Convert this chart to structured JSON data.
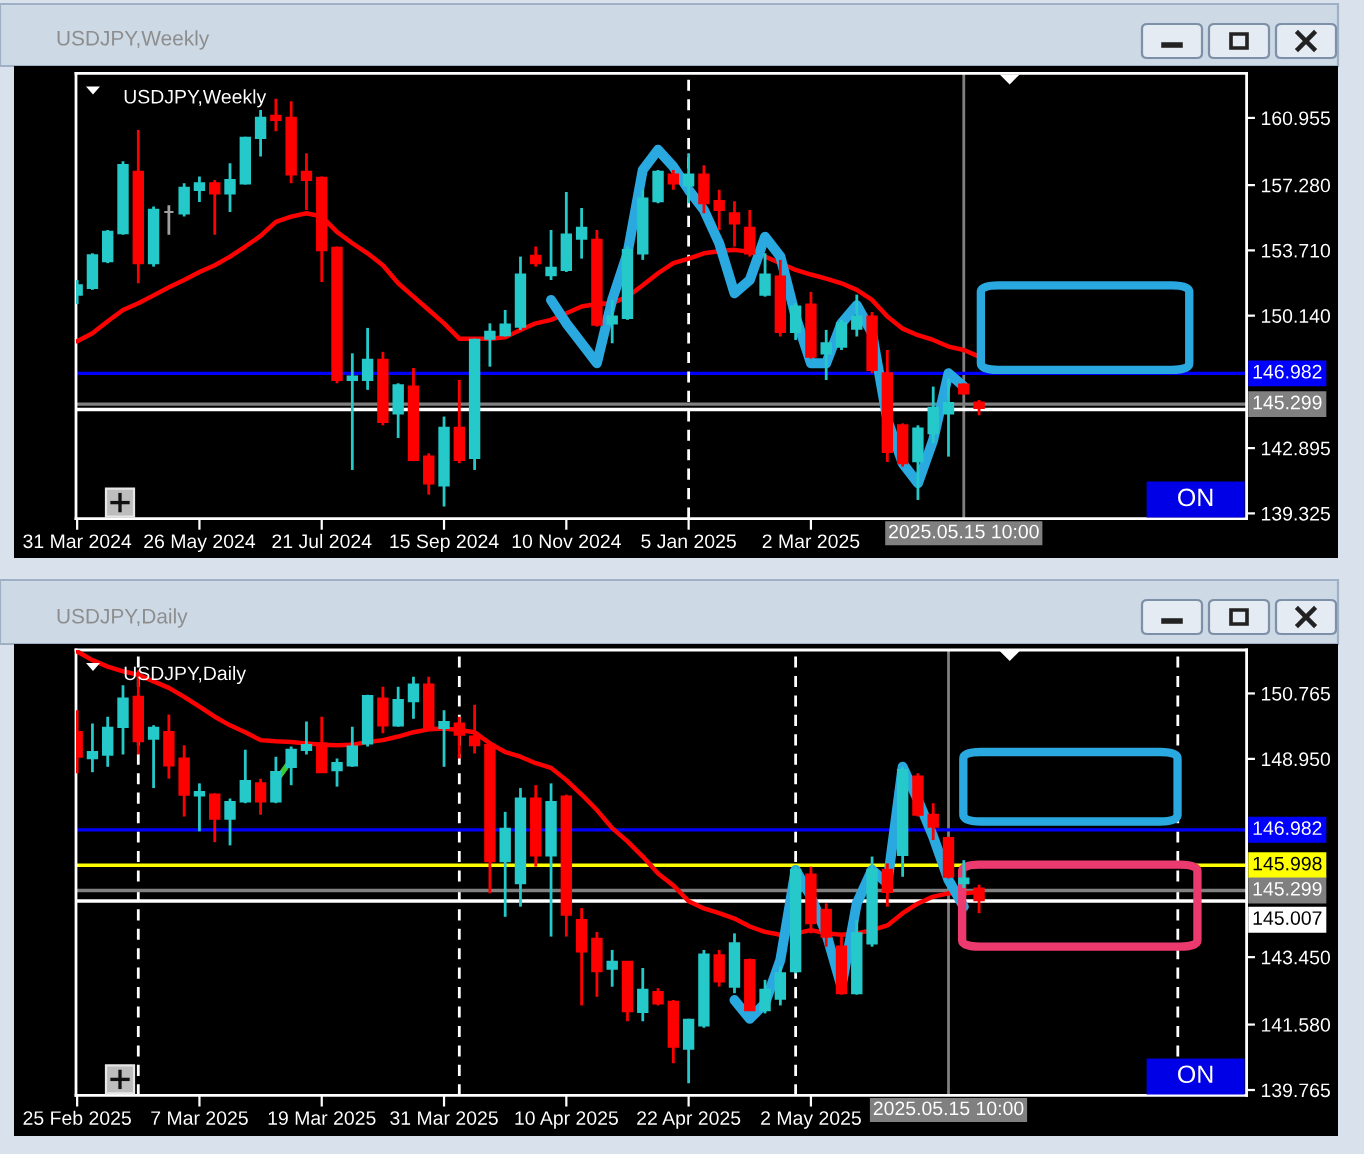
{
  "chart_data": [
    {
      "type": "candlestick",
      "title": "USDJPY,Weekly",
      "categories": [
        "31 Mar 2024",
        null,
        null,
        null,
        null,
        null,
        null,
        null,
        "26 May 2024",
        null,
        null,
        null,
        null,
        null,
        null,
        null,
        "21 Jul 2024",
        null,
        null,
        null,
        null,
        null,
        null,
        null,
        "15 Sep 2024",
        null,
        null,
        null,
        null,
        null,
        null,
        null,
        "10 Nov 2024",
        null,
        null,
        null,
        null,
        null,
        null,
        null,
        "5 Jan 2025",
        null,
        null,
        null,
        null,
        null,
        null,
        null,
        "2 Mar 2025",
        null,
        null,
        null,
        null,
        null,
        null,
        null,
        null,
        null,
        null,
        null
      ],
      "ohlc": [
        [
          151.29,
          152.09,
          150.78,
          151.8
        ],
        [
          151.66,
          153.55,
          151.55,
          153.44
        ],
        [
          153.12,
          154.83,
          153.01,
          154.72
        ],
        [
          154.65,
          158.59,
          154.57,
          158.37
        ],
        [
          158.0,
          160.3,
          151.91,
          153.01
        ],
        [
          153.01,
          156.11,
          152.82,
          155.92
        ],
        [
          155.81,
          156.18,
          154.57,
          155.81
        ],
        [
          155.74,
          157.38,
          155.56,
          157.13
        ],
        [
          157.02,
          157.75,
          156.36,
          157.38
        ],
        [
          157.38,
          157.56,
          154.57,
          156.83
        ],
        [
          156.83,
          158.48,
          155.81,
          157.56
        ],
        [
          157.38,
          159.93,
          157.31,
          159.86
        ],
        [
          159.86,
          161.39,
          158.84,
          160.96
        ],
        [
          161.07,
          162.01,
          160.23,
          160.85
        ],
        [
          160.96,
          161.87,
          157.38,
          157.86
        ],
        [
          158.0,
          159.02,
          155.92,
          157.56
        ],
        [
          157.67,
          157.75,
          151.98,
          153.73
        ],
        [
          153.85,
          153.92,
          146.44,
          146.62
        ],
        [
          146.62,
          148.08,
          141.7,
          146.81
        ],
        [
          146.62,
          149.47,
          146.08,
          147.72
        ],
        [
          147.72,
          148.16,
          144.14,
          144.33
        ],
        [
          144.8,
          146.44,
          143.45,
          146.33
        ],
        [
          146.26,
          147.28,
          142.18,
          142.25
        ],
        [
          142.43,
          142.61,
          140.35,
          140.97
        ],
        [
          140.86,
          144.62,
          139.7,
          144.0
        ],
        [
          144.0,
          146.62,
          142.07,
          142.25
        ],
        [
          142.36,
          148.88,
          141.7,
          148.81
        ],
        [
          148.88,
          149.72,
          147.35,
          149.25
        ],
        [
          149.07,
          150.45,
          149.0,
          149.65
        ],
        [
          149.54,
          153.37,
          149.36,
          152.39
        ],
        [
          153.41,
          153.92,
          152.82,
          153.01
        ],
        [
          152.35,
          154.83,
          152.09,
          152.75
        ],
        [
          152.64,
          156.91,
          152.53,
          154.57
        ],
        [
          154.35,
          156.03,
          153.26,
          154.94
        ],
        [
          154.28,
          154.83,
          149.54,
          149.65
        ],
        [
          149.72,
          151.0,
          148.63,
          150.09
        ],
        [
          150.02,
          153.92,
          149.91,
          153.73
        ],
        [
          153.55,
          157.02,
          153.19,
          156.54
        ],
        [
          156.4,
          158.11,
          156.29,
          158.0
        ],
        [
          157.86,
          158.11,
          157.02,
          157.38
        ],
        [
          157.27,
          159.02,
          156.29,
          157.86
        ],
        [
          157.86,
          158.37,
          155.74,
          156.29
        ],
        [
          156.4,
          157.02,
          154.83,
          155.92
        ],
        [
          155.74,
          156.4,
          153.92,
          155.19
        ],
        [
          154.94,
          155.92,
          153.37,
          153.55
        ],
        [
          151.29,
          153.55,
          151.18,
          152.39
        ],
        [
          152.28,
          153.19,
          149.0,
          149.25
        ],
        [
          149.25,
          150.82,
          148.81,
          150.64
        ],
        [
          150.74,
          151.44,
          147.79,
          147.9
        ],
        [
          148.08,
          149.36,
          146.62,
          148.63
        ],
        [
          148.45,
          149.91,
          148.26,
          149.72
        ],
        [
          149.43,
          151.29,
          149.0,
          150.09
        ],
        [
          150.09,
          150.34,
          146.99,
          147.17
        ],
        [
          146.99,
          148.26,
          142.14,
          142.69
        ],
        [
          144.14,
          144.25,
          141.88,
          142.07
        ],
        [
          142.18,
          144.14,
          140.06,
          143.96
        ],
        [
          143.71,
          146.26,
          143.16,
          145.09
        ],
        [
          144.8,
          146.7,
          142.43,
          145.35
        ],
        [
          146.37,
          146.44,
          145.82,
          145.89
        ],
        [
          145.38,
          145.53,
          144.69,
          145.09
        ]
      ],
      "colors": [
        "#26c9c9",
        "#26c9c9",
        "#26c9c9",
        "#26c9c9",
        "#ff0000",
        "#26c9c9",
        "#a0a0a0",
        "#26c9c9",
        "#26c9c9",
        "#ff0000",
        "#26c9c9",
        "#26c9c9",
        "#26c9c9",
        "#ff0000",
        "#ff0000",
        "#ff0000",
        "#ff0000",
        "#ff0000",
        "#26c9c9",
        "#26c9c9",
        "#ff0000",
        "#26c9c9",
        "#ff0000",
        "#ff0000",
        "#26c9c9",
        "#ff0000",
        "#26c9c9",
        "#26c9c9",
        "#26c9c9",
        "#26c9c9",
        "#ff0000",
        "#26c9c9",
        "#26c9c9",
        "#26c9c9",
        "#ff0000",
        "#26c9c9",
        "#26c9c9",
        "#26c9c9",
        "#26c9c9",
        "#ff0000",
        "#26c9c9",
        "#ff0000",
        "#ff0000",
        "#ff0000",
        "#ff0000",
        "#26c9c9",
        "#ff0000",
        "#26c9c9",
        "#ff0000",
        "#26c9c9",
        "#26c9c9",
        "#26c9c9",
        "#ff0000",
        "#ff0000",
        "#ff0000",
        "#26c9c9",
        "#26c9c9",
        "#26c9c9",
        "#ff0000",
        "#ff0000"
      ],
      "series": [
        {
          "type": "line",
          "color": "#ff0000",
          "values": [
            148.74,
            149.18,
            149.83,
            150.45,
            150.82,
            151.25,
            151.69,
            152.09,
            152.53,
            152.9,
            153.37,
            153.92,
            154.5,
            155.27,
            155.56,
            155.74,
            155.56,
            154.72,
            154.1,
            153.55,
            152.9,
            151.91,
            151.18,
            150.45,
            149.72,
            148.88,
            148.88,
            148.88,
            148.96,
            149.36,
            149.72,
            149.91,
            150.27,
            150.64,
            150.78,
            150.82,
            151.18,
            151.8,
            152.46,
            153.01,
            153.26,
            153.55,
            153.66,
            153.74,
            153.63,
            153.37,
            153.01,
            152.64,
            152.39,
            152.17,
            151.91,
            151.55,
            151.0,
            150.09,
            149.43,
            149.07,
            148.81,
            148.45,
            148.26,
            147.9
          ]
        },
        {
          "type": "line",
          "color": "#29a9e0",
          "values": [
            null,
            null,
            null,
            null,
            null,
            null,
            null,
            null,
            null,
            null,
            null,
            null,
            null,
            null,
            null,
            null,
            null,
            null,
            null,
            null,
            null,
            null,
            null,
            null,
            null,
            null,
            null,
            null,
            null,
            null,
            null,
            151.0,
            149.72,
            148.63,
            147.54,
            151.0,
            153.55,
            158.11,
            159.21,
            158.29,
            157.02,
            155.92,
            154.1,
            151.36,
            152.09,
            154.46,
            153.37,
            150.09,
            147.54,
            147.54,
            149.72,
            150.71,
            149.18,
            144.44,
            142.07,
            140.97,
            143.34,
            146.99,
            146.26,
            null
          ]
        }
      ],
      "ylim": [
        139.04,
        163.39
      ],
      "yticks": [
        160.955,
        {
          "value": 157.28,
          "label": "157.280"
        },
        {
          "value": 153.71,
          "label": "153.710"
        },
        {
          "value": 150.14,
          "label": "150.140"
        },
        142.895,
        139.325
      ],
      "ref_lines": [
        {
          "axis": "y",
          "value": 146.982,
          "label": "146.982",
          "color": "#0000ff"
        },
        {
          "axis": "y",
          "value": 145.007,
          "color": "#ffffff"
        },
        {
          "axis": "y",
          "value": 145.299,
          "label": "145.299",
          "color": "#808080"
        },
        {
          "axis": "x",
          "value": "5 Jan 2025",
          "color": "#ffffff",
          "line_style": "dashed"
        }
      ],
      "annotations": [
        "2025.05.15 10:00",
        "ON"
      ]
    },
    {
      "type": "candlestick",
      "title": "USDJPY,Daily",
      "categories": [
        "25 Feb 2025",
        null,
        null,
        null,
        null,
        null,
        null,
        null,
        "7 Mar 2025",
        null,
        null,
        null,
        null,
        null,
        null,
        null,
        "19 Mar 2025",
        null,
        null,
        null,
        null,
        null,
        null,
        null,
        "31 Mar 2025",
        null,
        null,
        null,
        null,
        null,
        null,
        null,
        "10 Apr 2025",
        null,
        null,
        null,
        null,
        null,
        null,
        null,
        "22 Apr 2025",
        null,
        null,
        null,
        null,
        null,
        null,
        null,
        "2 May 2025",
        null,
        null,
        null,
        null,
        null,
        null,
        null,
        null,
        null,
        null,
        null
      ],
      "ohlc": [
        [
          149.69,
          150.3,
          148.55,
          149.01
        ],
        [
          148.97,
          149.93,
          148.58,
          149.14
        ],
        [
          149.07,
          150.12,
          148.73,
          149.81
        ],
        [
          149.84,
          150.99,
          149.07,
          150.62
        ],
        [
          150.67,
          151.41,
          149.07,
          149.44
        ],
        [
          149.51,
          149.88,
          148.14,
          149.81
        ],
        [
          149.69,
          150.18,
          148.4,
          148.77
        ],
        [
          148.96,
          149.33,
          147.35,
          147.96
        ],
        [
          147.94,
          148.27,
          146.94,
          148.03
        ],
        [
          147.96,
          147.99,
          146.64,
          147.29
        ],
        [
          147.29,
          147.85,
          146.55,
          147.75
        ],
        [
          147.77,
          149.2,
          147.72,
          148.33
        ],
        [
          148.27,
          148.4,
          147.4,
          147.77
        ],
        [
          147.77,
          149.01,
          147.72,
          148.58
        ],
        [
          148.73,
          149.29,
          148.22,
          149.2
        ],
        [
          149.2,
          149.99,
          149.07,
          149.33
        ],
        [
          149.38,
          150.12,
          148.58,
          148.58
        ],
        [
          148.64,
          148.96,
          148.18,
          148.83
        ],
        [
          148.77,
          149.84,
          148.73,
          149.29
        ],
        [
          149.38,
          150.73,
          149.29,
          150.69
        ],
        [
          150.62,
          150.95,
          149.66,
          149.88
        ],
        [
          149.88,
          150.95,
          149.84,
          150.58
        ],
        [
          150.55,
          151.23,
          150.06,
          151.01
        ],
        [
          151.01,
          151.23,
          149.81,
          149.84
        ],
        [
          149.81,
          150.3,
          148.73,
          149.97
        ],
        [
          149.93,
          150.12,
          148.96,
          149.62
        ],
        [
          149.57,
          150.45,
          149.1,
          149.33
        ],
        [
          149.33,
          149.38,
          145.22,
          146.11
        ],
        [
          146.11,
          147.48,
          144.57,
          147.01
        ],
        [
          145.5,
          148.14,
          144.85,
          147.85
        ],
        [
          147.85,
          148.22,
          145.96,
          146.27
        ],
        [
          146.27,
          148.27,
          144.02,
          147.75
        ],
        [
          147.9,
          147.96,
          144.02,
          144.63
        ],
        [
          144.48,
          144.81,
          142.11,
          143.61
        ],
        [
          143.96,
          144.15,
          142.35,
          143.06
        ],
        [
          143.13,
          143.65,
          142.63,
          143.32
        ],
        [
          143.32,
          143.32,
          141.67,
          141.95
        ],
        [
          141.93,
          143.15,
          141.67,
          142.54
        ],
        [
          142.48,
          142.59,
          142.11,
          142.17
        ],
        [
          142.21,
          142.26,
          140.51,
          140.97
        ],
        [
          140.91,
          141.74,
          139.95,
          141.71
        ],
        [
          141.56,
          143.65,
          141.49,
          143.52
        ],
        [
          143.5,
          143.65,
          142.63,
          142.78
        ],
        [
          142.63,
          144.11,
          142.45,
          143.83
        ],
        [
          143.37,
          143.41,
          141.98,
          141.98
        ],
        [
          141.98,
          142.82,
          141.89,
          142.54
        ],
        [
          142.3,
          143.19,
          142.11,
          143.0
        ],
        [
          143.06,
          145.96,
          143.0,
          145.87
        ],
        [
          145.74,
          145.96,
          144.11,
          144.39
        ],
        [
          144.76,
          144.94,
          143.74,
          144.02
        ],
        [
          143.74,
          144.11,
          142.41,
          142.45
        ],
        [
          142.45,
          144.48,
          142.41,
          144.11
        ],
        [
          143.83,
          146.24,
          143.74,
          145.87
        ],
        [
          145.87,
          146.05,
          144.85,
          145.26
        ],
        [
          146.29,
          148.73,
          145.68,
          148.64
        ],
        [
          148.46,
          148.55,
          147.35,
          147.4
        ],
        [
          147.4,
          147.72,
          146.7,
          147.07
        ],
        [
          146.75,
          146.79,
          145.63,
          145.68
        ],
        [
          145.5,
          146.14,
          145.37,
          145.63
        ],
        [
          145.35,
          145.46,
          144.67,
          145.03
        ]
      ],
      "colors": [
        "#ff0000",
        "#26c9c9",
        "#26c9c9",
        "#26c9c9",
        "#ff0000",
        "#26c9c9",
        "#ff0000",
        "#ff0000",
        "#26c9c9",
        "#ff0000",
        "#26c9c9",
        "#26c9c9",
        "#ff0000",
        "#26c9c9",
        "#26c9c9",
        "#26c9c9",
        "#ff0000",
        "#26c9c9",
        "#26c9c9",
        "#26c9c9",
        "#ff0000",
        "#26c9c9",
        "#26c9c9",
        "#ff0000",
        "#26c9c9",
        "#ff0000",
        "#ff0000",
        "#ff0000",
        "#26c9c9",
        "#26c9c9",
        "#ff0000",
        "#26c9c9",
        "#ff0000",
        "#ff0000",
        "#ff0000",
        "#26c9c9",
        "#ff0000",
        "#26c9c9",
        "#ff0000",
        "#ff0000",
        "#26c9c9",
        "#26c9c9",
        "#ff0000",
        "#26c9c9",
        "#ff0000",
        "#26c9c9",
        "#26c9c9",
        "#26c9c9",
        "#ff0000",
        "#ff0000",
        "#ff0000",
        "#26c9c9",
        "#26c9c9",
        "#ff0000",
        "#26c9c9",
        "#ff0000",
        "#ff0000",
        "#ff0000",
        "#26c9c9",
        "#ff0000"
      ],
      "series": [
        {
          "type": "line",
          "color": "#ff0000",
          "values": [
            151.93,
            151.69,
            151.51,
            151.38,
            151.28,
            151.1,
            150.92,
            150.67,
            150.4,
            150.12,
            149.88,
            149.69,
            149.47,
            149.44,
            149.42,
            149.38,
            149.34,
            149.33,
            149.34,
            149.42,
            149.47,
            149.57,
            149.69,
            149.77,
            149.79,
            149.75,
            149.69,
            149.38,
            149.14,
            149.01,
            148.83,
            148.7,
            148.36,
            147.96,
            147.53,
            147.03,
            146.66,
            146.24,
            145.77,
            145.44,
            145.0,
            144.8,
            144.67,
            144.52,
            144.3,
            144.15,
            144.07,
            144.11,
            144.2,
            144.11,
            144.07,
            144.11,
            144.2,
            144.33,
            144.67,
            144.94,
            145.13,
            145.22,
            145.22,
            145.26
          ]
        },
        {
          "type": "line",
          "color": "#29a9e0",
          "values": [
            null,
            null,
            null,
            null,
            null,
            null,
            null,
            null,
            null,
            null,
            null,
            null,
            null,
            null,
            null,
            null,
            null,
            null,
            null,
            null,
            null,
            null,
            null,
            null,
            null,
            null,
            null,
            null,
            null,
            null,
            null,
            null,
            null,
            null,
            null,
            null,
            null,
            null,
            null,
            null,
            null,
            null,
            null,
            142.26,
            141.74,
            142.17,
            143.37,
            145.87,
            145.13,
            144.11,
            142.63,
            144.94,
            145.87,
            145.5,
            148.73,
            147.81,
            146.79,
            145.59,
            144.85,
            null
          ]
        },
        {
          "type": "line",
          "color": "#3cc83c",
          "values": [
            null,
            null,
            null,
            null,
            null,
            null,
            null,
            null,
            null,
            null,
            null,
            null,
            null,
            148.33,
            148.92,
            null,
            null,
            null,
            null,
            null,
            null,
            null,
            null,
            null,
            null,
            null,
            null,
            null,
            null,
            null,
            null,
            null,
            null,
            null,
            null,
            null,
            null,
            null,
            null,
            null,
            null,
            null,
            null,
            null,
            null,
            null,
            null,
            null,
            null,
            null,
            null,
            null,
            null,
            null,
            null,
            null,
            null,
            null,
            null,
            null
          ]
        }
      ],
      "ylim": [
        139.615,
        151.97
      ],
      "yticks": [
        150.765,
        {
          "value": 148.95,
          "label": "148.950"
        },
        {
          "value": 143.45,
          "label": "143.450"
        },
        {
          "value": 141.58,
          "label": "141.580"
        },
        139.765
      ],
      "ref_lines": [
        {
          "axis": "y",
          "value": 146.982,
          "label": "146.982",
          "color": "#0000ff"
        },
        {
          "axis": "y",
          "value": 145.998,
          "label": "145.998",
          "color": "#ffff00"
        },
        {
          "axis": "y",
          "value": 145.007,
          "label": "145.007",
          "color": "#ffffff"
        },
        {
          "axis": "y",
          "value": 145.299,
          "label": "145.299",
          "color": "#808080"
        }
      ],
      "grid": "x",
      "annotations": [
        "2025.05.15 10:00",
        "ON"
      ]
    }
  ]
}
